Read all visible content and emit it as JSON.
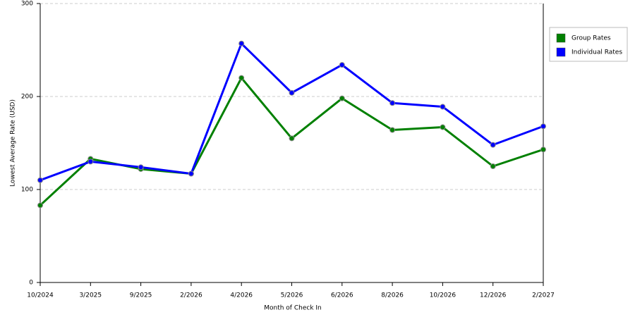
{
  "chart_data": {
    "type": "line",
    "x_label": "Month of Check In",
    "y_label": "Lowest Average Rate (USD)",
    "categories": [
      "10/2024",
      "3/2025",
      "9/2025",
      "2/2026",
      "4/2026",
      "5/2026",
      "6/2026",
      "8/2026",
      "10/2026",
      "12/2026",
      "2/2027"
    ],
    "series": [
      {
        "name": "Group Rates",
        "color": "#008000",
        "values": [
          83,
          133,
          122,
          117,
          220,
          155,
          198,
          164,
          167,
          125,
          143
        ]
      },
      {
        "name": "Individual Rates",
        "color": "#0000ff",
        "values": [
          110,
          130,
          124,
          117,
          257,
          204,
          234,
          193,
          189,
          148,
          168
        ]
      }
    ],
    "ylim": [
      0,
      300
    ],
    "yticks": [
      0,
      100,
      200,
      300
    ],
    "grid": true,
    "legend": "right"
  }
}
